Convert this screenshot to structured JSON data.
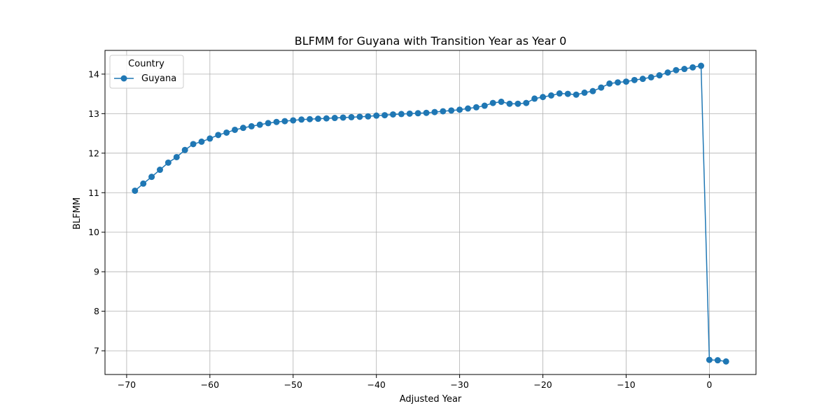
{
  "chart_data": {
    "type": "line",
    "title": "BLFMM for Guyana with Transition Year as Year 0",
    "xlabel": "Adjusted Year",
    "ylabel": "BLFMM",
    "xlim": [
      -72.6,
      5.6
    ],
    "ylim": [
      6.4,
      14.6
    ],
    "xticks": [
      -70,
      -60,
      -50,
      -40,
      -30,
      -20,
      -10,
      0
    ],
    "xtick_labels": [
      "−70",
      "−60",
      "−50",
      "−40",
      "−30",
      "−20",
      "−10",
      "0"
    ],
    "yticks": [
      7,
      8,
      9,
      10,
      11,
      12,
      13,
      14
    ],
    "ytick_labels": [
      "7",
      "8",
      "9",
      "10",
      "11",
      "12",
      "13",
      "14"
    ],
    "grid": true,
    "legend": {
      "title": "Country",
      "placement": "top-left"
    },
    "series": [
      {
        "name": "Guyana",
        "color": "#1f77b4",
        "marker": "circle",
        "x": [
          -69,
          -68,
          -67,
          -66,
          -65,
          -64,
          -63,
          -62,
          -61,
          -60,
          -59,
          -58,
          -57,
          -56,
          -55,
          -54,
          -53,
          -52,
          -51,
          -50,
          -49,
          -48,
          -47,
          -46,
          -45,
          -44,
          -43,
          -42,
          -41,
          -40,
          -39,
          -38,
          -37,
          -36,
          -35,
          -34,
          -33,
          -32,
          -31,
          -30,
          -29,
          -28,
          -27,
          -26,
          -25,
          -24,
          -23,
          -22,
          -21,
          -20,
          -19,
          -18,
          -17,
          -16,
          -15,
          -14,
          -13,
          -12,
          -11,
          -10,
          -9,
          -8,
          -7,
          -6,
          -5,
          -4,
          -3,
          -2,
          -1,
          0,
          1,
          2
        ],
        "y": [
          11.05,
          11.23,
          11.4,
          11.58,
          11.76,
          11.9,
          12.08,
          12.23,
          12.29,
          12.37,
          12.46,
          12.52,
          12.59,
          12.64,
          12.68,
          12.72,
          12.76,
          12.79,
          12.81,
          12.83,
          12.85,
          12.86,
          12.87,
          12.88,
          12.89,
          12.9,
          12.91,
          12.92,
          12.93,
          12.95,
          12.96,
          12.98,
          12.99,
          13.0,
          13.01,
          13.02,
          13.04,
          13.06,
          13.08,
          13.1,
          13.13,
          13.16,
          13.2,
          13.27,
          13.3,
          13.25,
          13.25,
          13.27,
          13.38,
          13.42,
          13.46,
          13.51,
          13.5,
          13.48,
          13.53,
          13.57,
          13.66,
          13.76,
          13.79,
          13.81,
          13.85,
          13.88,
          13.92,
          13.97,
          14.04,
          14.1,
          14.13,
          14.17,
          14.21,
          6.77,
          6.76,
          6.73
        ]
      }
    ]
  }
}
